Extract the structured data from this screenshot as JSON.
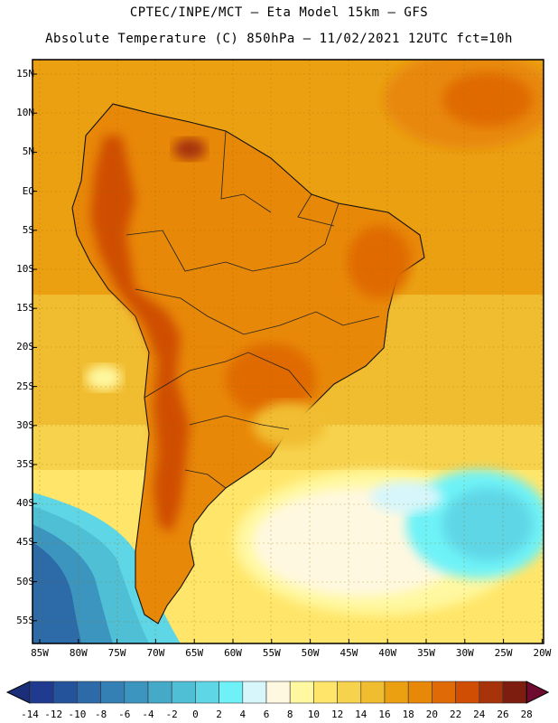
{
  "header": {
    "line1": "CPTEC/INPE/MCT – Eta Model 15km – GFS",
    "line2": "Absolute Temperature (C) 850hPa – 11/02/2021 12UTC fct=10h"
  },
  "map": {
    "lat_labels": [
      "15N",
      "10N",
      "5N",
      "EQ",
      "5S",
      "10S",
      "15S",
      "20S",
      "25S",
      "30S",
      "35S",
      "40S",
      "45S",
      "50S",
      "55S"
    ],
    "lon_labels": [
      "85W",
      "80W",
      "75W",
      "70W",
      "65W",
      "60W",
      "55W",
      "50W",
      "45W",
      "40W",
      "35W",
      "30W",
      "25W",
      "20W"
    ]
  },
  "colorbar": {
    "ticks": [
      "-14",
      "-12",
      "-10",
      "-8",
      "-6",
      "-4",
      "-2",
      "0",
      "2",
      "4",
      "6",
      "8",
      "10",
      "12",
      "14",
      "16",
      "18",
      "20",
      "22",
      "24",
      "26",
      "28"
    ],
    "colors": [
      "#1f3a8f",
      "#24539b",
      "#2c6aa8",
      "#3480b4",
      "#3c95be",
      "#45a9c8",
      "#4fbfd6",
      "#5fd6e6",
      "#6ef2f7",
      "#d6f6fb",
      "#fff8e0",
      "#fff8a0",
      "#ffe66a",
      "#f7d24c",
      "#f1bd30",
      "#eba012",
      "#e88808",
      "#e06a06",
      "#cf4e04",
      "#a6330a",
      "#7d1d0f"
    ],
    "end_low": "#1a2e7a",
    "end_high": "#6e0b2e"
  }
}
